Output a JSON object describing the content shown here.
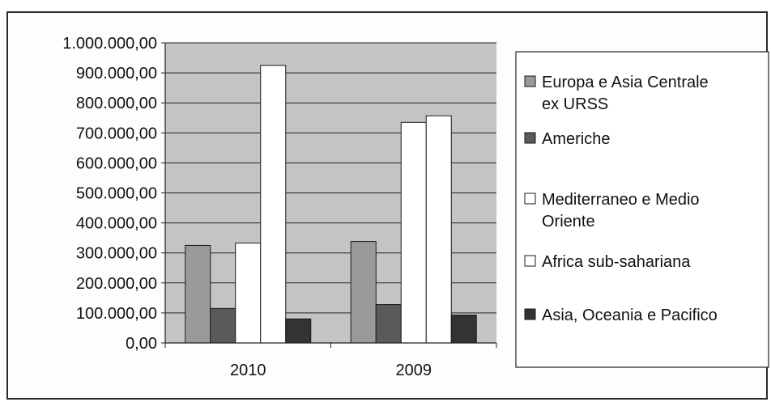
{
  "chart_data": {
    "type": "bar",
    "categories": [
      "2010",
      "2009"
    ],
    "series": [
      {
        "name": "Europa e Asia Centrale ex URSS",
        "values": [
          325000,
          338000
        ],
        "color": "#9a9a9a"
      },
      {
        "name": "Americhe",
        "values": [
          115000,
          128000
        ],
        "color": "#5a5a5a"
      },
      {
        "name": "Mediterraneo e Medio Oriente",
        "values": [
          333000,
          735000
        ],
        "color": "#ffffff"
      },
      {
        "name": "Africa sub-sahariana",
        "values": [
          925000,
          757000
        ],
        "color": "#ffffff"
      },
      {
        "name": "Asia, Oceania e Pacifico",
        "values": [
          80000,
          93000
        ],
        "color": "#333333"
      }
    ],
    "ylim": [
      0,
      1000000
    ],
    "yticks": [
      {
        "value": 0,
        "label": "0,00"
      },
      {
        "value": 100000,
        "label": "100.000,00"
      },
      {
        "value": 200000,
        "label": "200.000,00"
      },
      {
        "value": 300000,
        "label": "300.000,00"
      },
      {
        "value": 400000,
        "label": "400.000,00"
      },
      {
        "value": 500000,
        "label": "500.000,00"
      },
      {
        "value": 600000,
        "label": "600.000,00"
      },
      {
        "value": 700000,
        "label": "700.000,00"
      },
      {
        "value": 800000,
        "label": "800.000,00"
      },
      {
        "value": 900000,
        "label": "900.000,00"
      },
      {
        "value": 1000000,
        "label": "1.000.000,00"
      }
    ],
    "legend": {
      "position": "right",
      "entries": [
        {
          "lines": [
            "Europa e Asia Centrale",
            "ex URSS"
          ]
        },
        {
          "lines": [
            "Americhe"
          ]
        },
        {
          "lines": [
            "Mediterraneo e Medio",
            "Oriente"
          ]
        },
        {
          "lines": [
            "Africa sub-sahariana"
          ]
        },
        {
          "lines": [
            "Asia, Oceania e Pacifico"
          ]
        }
      ]
    },
    "grid": true,
    "plot_background": "#c4c4c4"
  }
}
